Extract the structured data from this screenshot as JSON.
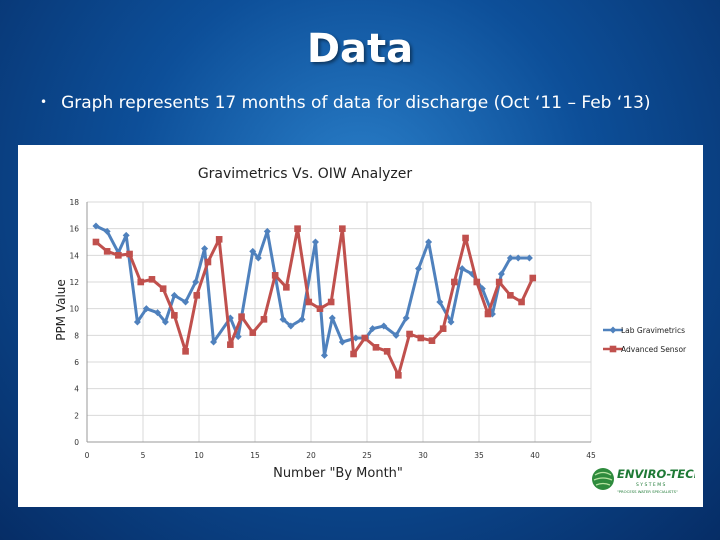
{
  "slide": {
    "title": "Data",
    "bullet_marker": "•",
    "bullet_text": "Graph represents  17 months of data for discharge (Oct ‘11 – Feb ‘13)"
  },
  "logo": {
    "name": "ENVIRO-TECH",
    "subline": "S Y S T E M S",
    "tagline": "\"PROCESS WATER SPECIALISTS\"",
    "icon": "globe-icon"
  },
  "chart_data": {
    "type": "line",
    "title": "Gravimetrics Vs. OIW Analyzer",
    "xlabel": "Number \"By Month\"",
    "ylabel": "PPM Value",
    "xlim": [
      0,
      45
    ],
    "ylim": [
      0,
      18
    ],
    "x_ticks": [
      0,
      5,
      10,
      15,
      20,
      25,
      30,
      35,
      40,
      45
    ],
    "y_ticks": [
      0,
      2,
      4,
      6,
      8,
      10,
      12,
      14,
      16,
      18
    ],
    "grid": true,
    "legend_position": "right",
    "series": [
      {
        "name": "Lab Gravimetrics",
        "color": "#4f81bd",
        "marker": "diamond",
        "x": [
          0.8,
          1.8,
          2.8,
          3.5,
          4.5,
          5.3,
          6.3,
          7.0,
          7.8,
          8.8,
          9.7,
          10.5,
          11.3,
          12.8,
          13.5,
          14.8,
          15.3,
          16.1,
          17.5,
          18.2,
          19.2,
          20.4,
          21.2,
          21.9,
          22.8,
          24.0,
          24.9,
          25.5,
          26.5,
          27.6,
          28.5,
          29.6,
          30.5,
          31.5,
          32.5,
          33.5,
          34.4,
          35.3,
          36.2,
          37.0,
          37.8,
          38.5,
          39.5
        ],
        "values": [
          16.2,
          15.8,
          14.2,
          15.5,
          9.0,
          10.0,
          9.7,
          9.0,
          11.0,
          10.5,
          12.0,
          14.5,
          7.5,
          9.3,
          7.9,
          14.3,
          13.8,
          15.8,
          9.2,
          8.7,
          9.2,
          15.0,
          6.5,
          9.3,
          7.5,
          7.8,
          7.8,
          8.5,
          8.7,
          8.0,
          9.3,
          13.0,
          15.0,
          10.5,
          9.0,
          13.0,
          12.6,
          11.5,
          9.6,
          12.6,
          13.8,
          13.8,
          13.8
        ]
      },
      {
        "name": "Advanced Sensor",
        "color": "#c0504d",
        "marker": "square",
        "x": [
          0.8,
          1.8,
          2.8,
          3.8,
          4.8,
          5.8,
          6.8,
          7.8,
          8.8,
          9.8,
          10.8,
          11.8,
          12.8,
          13.8,
          14.8,
          15.8,
          16.8,
          17.8,
          18.8,
          19.8,
          20.8,
          21.8,
          22.8,
          23.8,
          24.8,
          25.8,
          26.8,
          27.8,
          28.8,
          29.8,
          30.8,
          31.8,
          32.8,
          33.8,
          34.8,
          35.8,
          36.8,
          37.8,
          38.8,
          39.8
        ],
        "values": [
          15.0,
          14.3,
          14.0,
          14.1,
          12.0,
          12.2,
          11.5,
          9.5,
          6.8,
          11.0,
          13.5,
          15.2,
          7.3,
          9.4,
          8.2,
          9.2,
          12.5,
          11.6,
          16.0,
          10.5,
          10.0,
          10.5,
          16.0,
          6.6,
          7.8,
          7.1,
          6.8,
          5.0,
          8.1,
          7.8,
          7.6,
          8.5,
          12.0,
          15.3,
          12.0,
          9.6,
          12.0,
          11.0,
          10.5,
          12.3
        ]
      }
    ]
  }
}
